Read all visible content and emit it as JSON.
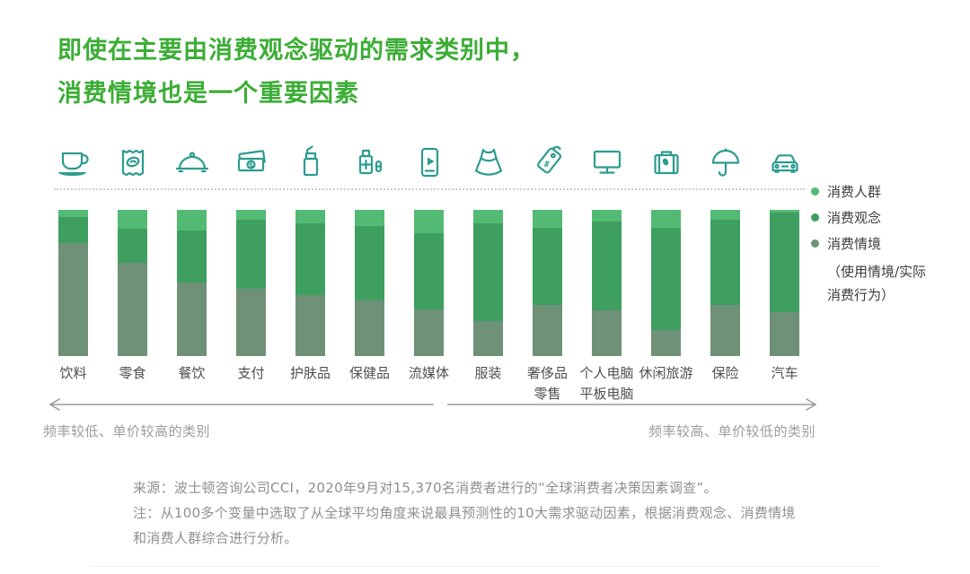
{
  "title": {
    "text": "即使在主要由消费观念驱动的需求类别中，\n消费情境也是一个重要因素"
  },
  "colors": {
    "title_green": "#3CAD36",
    "icon_teal": "#2C9C8E",
    "segment_consumer_group": "#53BA74",
    "segment_consumption_concept": "#3E9F60",
    "segment_consumption_context": "#6F9177",
    "muted_text": "#9C9C9C"
  },
  "legend": {
    "items": [
      {
        "label": "消费人群",
        "color": "#53BA74"
      },
      {
        "label": "消费观念",
        "color": "#3E9F60"
      },
      {
        "label": "消费情境",
        "color": "#6F9177",
        "sublabel": "（使用情境/实际\n消费行为）"
      }
    ]
  },
  "chart_data": {
    "type": "bar",
    "stacked": true,
    "percent_of_total": true,
    "ylim": [
      0,
      100
    ],
    "grid": false,
    "legend_position": "right",
    "categories": [
      "饮料",
      "零食",
      "餐饮",
      "支付",
      "护肤品",
      "保健品",
      "流媒体",
      "服装",
      "奢侈品零售",
      "个人电脑平板电脑",
      "休闲旅游",
      "保险",
      "汽车"
    ],
    "categories_display": [
      "饮料",
      "零食",
      "餐饮",
      "支付",
      "护肤品",
      "保健品",
      "流媒体",
      "服装",
      "奢侈品\n零售",
      "个人电脑\n平板电脑",
      "休闲旅游",
      "保险",
      "汽车"
    ],
    "icons": [
      "coffee-cup-icon",
      "snack-bag-icon",
      "cloche-icon",
      "banknotes-icon",
      "lotion-bottle-icon",
      "medicine-icon",
      "streaming-phone-icon",
      "dress-icon",
      "price-tag-icon",
      "monitor-icon",
      "suitcase-icon",
      "umbrella-icon",
      "car-icon"
    ],
    "series": [
      {
        "name": "消费人群",
        "color": "#53BA74",
        "values": [
          5,
          13,
          14,
          7,
          9,
          11,
          16,
          9,
          12,
          8,
          12,
          7,
          2
        ]
      },
      {
        "name": "消费观念",
        "color": "#3E9F60",
        "values": [
          18,
          23,
          36,
          47,
          49,
          51,
          52,
          67,
          53,
          61,
          70,
          58,
          68
        ]
      },
      {
        "name": "消费情境",
        "color": "#6F9177",
        "values": [
          77,
          64,
          50,
          46,
          42,
          38,
          32,
          24,
          35,
          31,
          18,
          35,
          30
        ]
      }
    ]
  },
  "annotations": {
    "left": "频率较低、单价较高的类别",
    "right": "频率较高、单价较低的类别"
  },
  "footer": {
    "source": "来源：波士顿咨询公司CCI，2020年9月对15,370名消费者进行的“全球消费者决策因素调查”。",
    "note": "注：从100多个变量中选取了从全球平均角度来说最具预测性的10大需求驱动因素，根据消费观念、消费情境\n和消费人群综合进行分析。"
  }
}
